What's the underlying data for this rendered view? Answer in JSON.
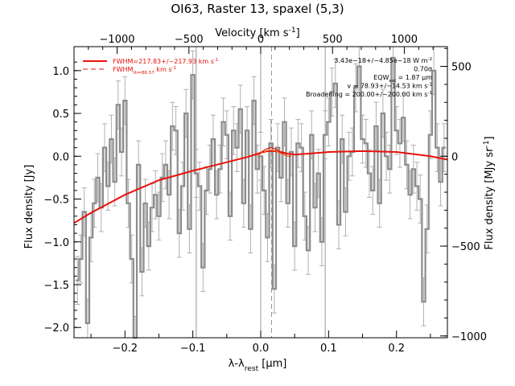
{
  "chart_data": {
    "type": "line",
    "title": "OI63, Raster 13, spaxel (5,3)",
    "xlabel": "λ-λ_rest [μm]",
    "ylabel": "Flux density [Jy]",
    "top_axis_label": "Velocity [km s^-1]",
    "right_axis_label": "Flux density [MJy sr^-1]",
    "xlim": [
      -0.275,
      0.275
    ],
    "ylim": [
      -2.12,
      1.28
    ],
    "top_xlim": [
      -1300,
      1300
    ],
    "right_ylim": [
      -1010,
      610
    ],
    "x_ticks": [
      -0.2,
      -0.1,
      0.0,
      0.1,
      0.2
    ],
    "x_tick_labels": [
      "−0.2",
      "−0.1",
      "0.0",
      "0.1",
      "0.2"
    ],
    "y_ticks": [
      -2.0,
      -1.5,
      -1.0,
      -0.5,
      0.0,
      0.5,
      1.0
    ],
    "y_tick_labels": [
      "−2.0",
      "−1.5",
      "−1.0",
      "−0.5",
      "0.0",
      "0.5",
      "1.0"
    ],
    "top_ticks": [
      -1000,
      -500,
      0,
      500,
      1000
    ],
    "top_tick_labels": [
      "−1000",
      "−500",
      "0",
      "500",
      "1000"
    ],
    "right_ticks": [
      -1000,
      -500,
      0,
      500
    ],
    "right_tick_labels": [
      "−1000",
      "−500",
      "0",
      "500"
    ],
    "vertical_lines": [
      -0.095,
      0.0,
      0.095
    ],
    "rest_line": 0.016,
    "legend": [
      {
        "label": "FWHM=217.83+/−217.93 km s^-1",
        "style": "solid"
      },
      {
        "label": "FWHM_th=86.57 km s^-1",
        "style": "dashed"
      }
    ],
    "annotations": [
      "3.43e−18+/−4.85e−18 W m^-2",
      "0.70σ",
      "EQW_est = 1.87 μm",
      "v = 78.93+/−14.53 km s^-1",
      "Broadening = 200.00+/−200.00 km s^-1"
    ],
    "series": [
      {
        "type": "step",
        "x": [
          -0.27,
          -0.265,
          -0.26,
          -0.255,
          -0.25,
          -0.245,
          -0.24,
          -0.235,
          -0.23,
          -0.225,
          -0.22,
          -0.215,
          -0.21,
          -0.205,
          -0.2,
          -0.195,
          -0.19,
          -0.185,
          -0.18,
          -0.175,
          -0.17,
          -0.165,
          -0.16,
          -0.155,
          -0.15,
          -0.145,
          -0.14,
          -0.135,
          -0.13,
          -0.125,
          -0.12,
          -0.115,
          -0.11,
          -0.105,
          -0.1,
          -0.095,
          -0.09,
          -0.085,
          -0.08,
          -0.075,
          -0.07,
          -0.065,
          -0.06,
          -0.055,
          -0.05,
          -0.045,
          -0.04,
          -0.035,
          -0.03,
          -0.025,
          -0.02,
          -0.015,
          -0.01,
          -0.005,
          0.0,
          0.005,
          0.01,
          0.015,
          0.02,
          0.025,
          0.03,
          0.035,
          0.04,
          0.045,
          0.05,
          0.055,
          0.06,
          0.065,
          0.07,
          0.075,
          0.08,
          0.085,
          0.09,
          0.095,
          0.1,
          0.105,
          0.11,
          0.115,
          0.12,
          0.125,
          0.13,
          0.135,
          0.14,
          0.145,
          0.15,
          0.155,
          0.16,
          0.165,
          0.17,
          0.175,
          0.18,
          0.185,
          0.19,
          0.195,
          0.2,
          0.205,
          0.21,
          0.215,
          0.22,
          0.225,
          0.23,
          0.235,
          0.24,
          0.245,
          0.25,
          0.255,
          0.26,
          0.265,
          0.27
        ],
        "values": [
          -1.45,
          -1.2,
          -0.65,
          -1.95,
          -0.95,
          -0.55,
          -0.25,
          -0.6,
          0.1,
          -0.35,
          0.2,
          -0.3,
          0.6,
          0.05,
          0.65,
          -0.55,
          -1.2,
          -2.15,
          -0.1,
          -1.35,
          -0.55,
          -1.05,
          -0.6,
          -0.45,
          -0.7,
          -0.25,
          -0.1,
          -0.45,
          0.35,
          0.3,
          -0.9,
          -0.35,
          0.5,
          -0.85,
          0.95,
          -0.2,
          -0.35,
          -1.3,
          -0.4,
          -0.15,
          0.2,
          -0.45,
          -0.15,
          0.4,
          0.25,
          -0.7,
          0.3,
          0.1,
          0.55,
          -0.55,
          0.3,
          -0.85,
          0.65,
          -0.15,
          0.0,
          -0.4,
          -0.95,
          0.15,
          -1.55,
          0.1,
          -0.25,
          0.4,
          -0.55,
          0.05,
          -1.05,
          0.15,
          0.1,
          -0.7,
          -1.1,
          0.25,
          -0.6,
          -0.2,
          -1.0,
          0.25,
          0.4,
          0.75,
          0.85,
          -0.8,
          0.2,
          -0.65,
          0.0,
          0.05,
          0.8,
          1.05,
          0.2,
          0.15,
          -0.2,
          -0.4,
          0.35,
          -0.55,
          0.5,
          0.0,
          -0.15,
          1.15,
          0.3,
          0.15,
          0.45,
          -0.1,
          -0.45,
          -0.15,
          -0.35,
          -0.5,
          -1.7,
          -0.85,
          0.25,
          1.0,
          0.1,
          -0.3,
          0.1
        ],
        "error": 0.28
      },
      {
        "type": "fit",
        "x": [
          -0.275,
          -0.25,
          -0.2,
          -0.15,
          -0.1,
          -0.05,
          -0.02,
          0.0,
          0.01,
          0.02,
          0.03,
          0.04,
          0.05,
          0.07,
          0.1,
          0.15,
          0.2,
          0.25,
          0.275
        ],
        "values": [
          -0.78,
          -0.66,
          -0.45,
          -0.28,
          -0.17,
          -0.07,
          -0.01,
          0.04,
          0.06,
          0.06,
          0.05,
          0.03,
          0.02,
          0.03,
          0.05,
          0.06,
          0.05,
          0.0,
          -0.04
        ]
      },
      {
        "type": "line-component",
        "x": [
          -0.005,
          0.0,
          0.005,
          0.01,
          0.015,
          0.02,
          0.025,
          0.03,
          0.035,
          0.04,
          0.045
        ],
        "values": [
          0.0,
          0.04,
          0.07,
          0.09,
          0.1,
          0.09,
          0.07,
          0.04,
          0.02,
          0.0,
          0.0
        ]
      }
    ]
  }
}
